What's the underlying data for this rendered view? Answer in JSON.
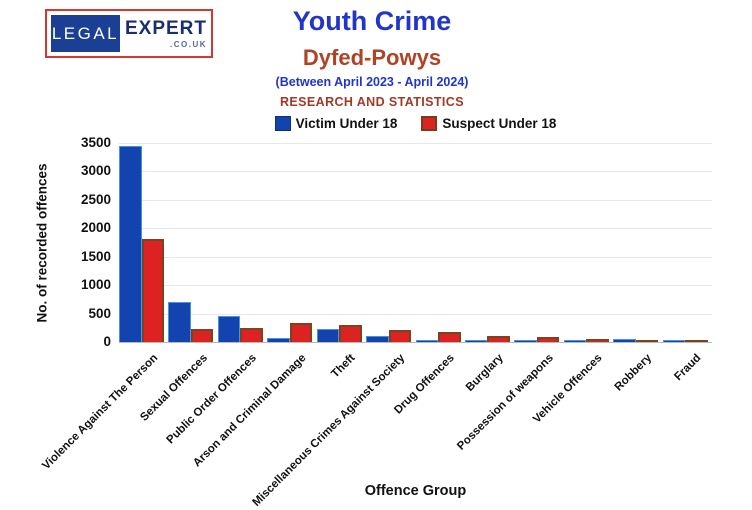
{
  "logo": {
    "part1": "LEGAL",
    "part2": "EXPERT",
    "part3": ".CO.UK"
  },
  "header": {
    "title": "Youth Crime",
    "subtitle": "Dyfed-Powys",
    "period": "(Between April 2023 - April 2024)",
    "tagline": "RESEARCH AND STATISTICS"
  },
  "legend": [
    {
      "label": "Victim Under 18",
      "color": "#1243af"
    },
    {
      "label": "Suspect Under 18",
      "color": "#dd2222"
    }
  ],
  "colors": {
    "title_blue": "#2135c8",
    "subtitle_rust": "#b04226",
    "tagline_rust": "#a23927",
    "victim_bar": "#1243af",
    "suspect_bar": "#dd2222",
    "logo_border_red": "#d23a30",
    "logo_blue": "#1b3f94"
  },
  "chart_data": {
    "type": "bar",
    "title": "Youth Crime — Dyfed-Powys (Between April 2023 - April 2024)",
    "xlabel": "Offence Group",
    "ylabel": "No. of recorded offences",
    "ylim": [
      0,
      3500
    ],
    "ytick_step": 500,
    "grid": true,
    "legend_position": "top",
    "categories": [
      "Violence Against The Person",
      "Sexual Offences",
      "Public Order Offences",
      "Arson and Criminal Damage",
      "Theft",
      "Miscellaneous Crimes Against Society",
      "Drug Offences",
      "Burglary",
      "Possession of weapons",
      "Vehicle Offences",
      "Robbery",
      "Fraud"
    ],
    "series": [
      {
        "name": "Victim Under 18",
        "color": "#1243af",
        "values": [
          3440,
          700,
          460,
          70,
          230,
          100,
          20,
          15,
          30,
          20,
          50,
          30
        ]
      },
      {
        "name": "Suspect Under 18",
        "color": "#dd2222",
        "values": [
          1820,
          230,
          250,
          330,
          300,
          220,
          180,
          100,
          90,
          60,
          35,
          10
        ]
      }
    ]
  }
}
